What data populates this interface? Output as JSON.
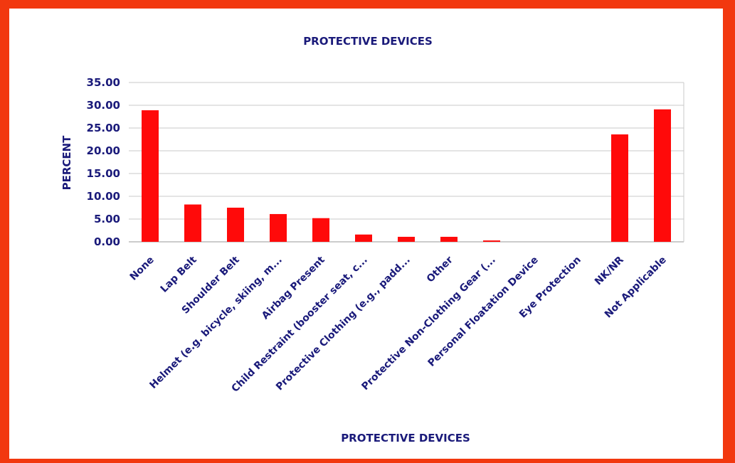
{
  "colors": {
    "border": "#f2380f",
    "bar": "#ff0a0a",
    "text": "#1a1a7a",
    "grid": "#c8c8c8"
  },
  "chart_data": {
    "type": "bar",
    "title": "PROTECTIVE DEVICES",
    "xlabel": "PROTECTIVE DEVICES",
    "ylabel": "PERCENT",
    "ylim": [
      0,
      35
    ],
    "yticks": [
      "0.00",
      "5.00",
      "10.00",
      "15.00",
      "20.00",
      "25.00",
      "30.00",
      "35.00"
    ],
    "grid": true,
    "categories": [
      "None",
      "Lap Belt",
      "Shoulder Belt",
      "Helmet (e.g. bicycle, skiing, m...",
      "Airbag Present",
      "Child Restraint (booster seat, c...",
      "Protective Clothing (e.g., padd...",
      "Other",
      "Protective Non-Clothing Gear (...",
      "Personal Floatation Device",
      "Eye Protection",
      "NK/NR",
      "Not Applicable"
    ],
    "values": [
      28.9,
      8.2,
      7.5,
      6.1,
      5.2,
      1.6,
      1.1,
      1.1,
      0.3,
      0.0,
      0.0,
      23.6,
      29.1
    ]
  }
}
